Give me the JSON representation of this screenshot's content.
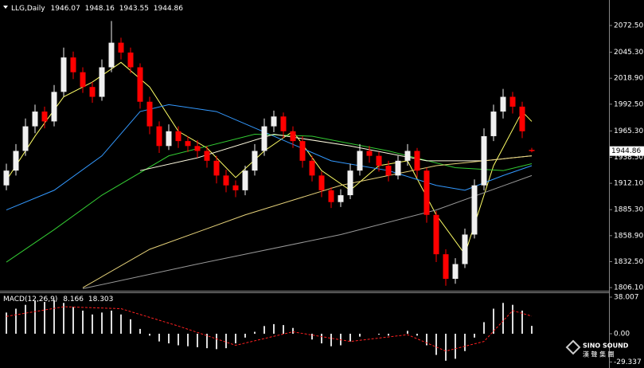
{
  "chart_data": {
    "type": "candlestick",
    "symbol": "LLG,Daily",
    "bull_color": "#f0f0f0",
    "bear_color": "#ff0000",
    "candles": [
      [
        1910,
        1932,
        1905,
        1925
      ],
      [
        1925,
        1952,
        1920,
        1945
      ],
      [
        1945,
        1978,
        1940,
        1970
      ],
      [
        1970,
        1992,
        1963,
        1985
      ],
      [
        1985,
        1990,
        1968,
        1975
      ],
      [
        1975,
        2012,
        1970,
        2005
      ],
      [
        2005,
        2050,
        2000,
        2040
      ],
      [
        2040,
        2046,
        2018,
        2025
      ],
      [
        2025,
        2030,
        2004,
        2010
      ],
      [
        2010,
        2015,
        1994,
        2000
      ],
      [
        2000,
        2038,
        1996,
        2030
      ],
      [
        2030,
        2077,
        2025,
        2055
      ],
      [
        2055,
        2060,
        2038,
        2045
      ],
      [
        2045,
        2050,
        2024,
        2030
      ],
      [
        2030,
        2034,
        1988,
        1995
      ],
      [
        1995,
        2000,
        1962,
        1970
      ],
      [
        1970,
        1975,
        1943,
        1950
      ],
      [
        1950,
        1972,
        1946,
        1965
      ],
      [
        1965,
        1970,
        1948,
        1955
      ],
      [
        1955,
        1960,
        1944,
        1950
      ],
      [
        1950,
        1956,
        1938,
        1945
      ],
      [
        1945,
        1950,
        1928,
        1935
      ],
      [
        1935,
        1940,
        1912,
        1920
      ],
      [
        1920,
        1926,
        1903,
        1910
      ],
      [
        1910,
        1915,
        1898,
        1905
      ],
      [
        1905,
        1930,
        1900,
        1925
      ],
      [
        1925,
        1952,
        1920,
        1945
      ],
      [
        1945,
        1978,
        1940,
        1970
      ],
      [
        1970,
        1986,
        1964,
        1980
      ],
      [
        1980,
        1984,
        1958,
        1965
      ],
      [
        1965,
        1970,
        1948,
        1955
      ],
      [
        1955,
        1960,
        1928,
        1935
      ],
      [
        1935,
        1940,
        1914,
        1920
      ],
      [
        1920,
        1924,
        1898,
        1905
      ],
      [
        1905,
        1908,
        1887,
        1893
      ],
      [
        1893,
        1906,
        1888,
        1900
      ],
      [
        1900,
        1932,
        1896,
        1925
      ],
      [
        1925,
        1952,
        1920,
        1945
      ],
      [
        1945,
        1950,
        1933,
        1940
      ],
      [
        1940,
        1944,
        1924,
        1930
      ],
      [
        1930,
        1935,
        1914,
        1920
      ],
      [
        1920,
        1940,
        1916,
        1935
      ],
      [
        1935,
        1952,
        1930,
        1945
      ],
      [
        1945,
        1948,
        1918,
        1925
      ],
      [
        1925,
        1928,
        1872,
        1880
      ],
      [
        1880,
        1884,
        1832,
        1840
      ],
      [
        1840,
        1845,
        1808,
        1815
      ],
      [
        1815,
        1836,
        1810,
        1830
      ],
      [
        1830,
        1866,
        1826,
        1860
      ],
      [
        1860,
        1916,
        1856,
        1910
      ],
      [
        1910,
        1968,
        1905,
        1960
      ],
      [
        1960,
        1992,
        1955,
        1985
      ],
      [
        1985,
        2008,
        1978,
        2000
      ],
      [
        2000,
        2005,
        1983,
        1990
      ],
      [
        1990,
        1995,
        1958,
        1965
      ],
      [
        1946.07,
        1948.16,
        1943.55,
        1944.86
      ]
    ],
    "moving_averages": [
      {
        "color": "#ffff66",
        "x": [
          0,
          3,
          6,
          9,
          12,
          15,
          18,
          21,
          24,
          27,
          30,
          33,
          36,
          39,
          42,
          45,
          48,
          51,
          54,
          55
        ],
        "values": [
          1915,
          1960,
          2000,
          2015,
          2035,
          2010,
          1965,
          1948,
          1918,
          1945,
          1965,
          1925,
          1905,
          1930,
          1935,
          1880,
          1840,
          1930,
          1985,
          1975
        ]
      },
      {
        "color": "#3399ff",
        "x": [
          0,
          5,
          10,
          14,
          17,
          22,
          28,
          34,
          40,
          45,
          48,
          52,
          55
        ],
        "values": [
          1885,
          1905,
          1940,
          1985,
          1992,
          1985,
          1960,
          1935,
          1925,
          1910,
          1905,
          1920,
          1930
        ]
      },
      {
        "color": "#33cc33",
        "x": [
          0,
          5,
          10,
          17,
          26,
          32,
          40,
          47,
          52,
          55
        ],
        "values": [
          1832,
          1865,
          1900,
          1940,
          1962,
          1960,
          1945,
          1928,
          1925,
          1932
        ]
      },
      {
        "color": "#fffbe0",
        "x": [
          14,
          20,
          28,
          36,
          44,
          50,
          55
        ],
        "values": [
          1925,
          1938,
          1962,
          1950,
          1935,
          1935,
          1940
        ]
      },
      {
        "color": "#999999",
        "x": [
          8,
          20,
          35,
          45,
          55
        ],
        "values": [
          1805,
          1830,
          1860,
          1885,
          1920
        ]
      },
      {
        "color": "#e6d27a",
        "x": [
          8,
          15,
          25,
          35,
          45,
          55
        ],
        "values": [
          1806,
          1845,
          1880,
          1910,
          1930,
          1940
        ]
      }
    ],
    "ylim": [
      1802.9,
      2098.4
    ],
    "yticks": [
      {
        "value": 1806.1,
        "label": "1806.10"
      },
      {
        "value": 1832.5,
        "label": "1832.50"
      },
      {
        "value": 1858.9,
        "label": "1858.90"
      },
      {
        "value": 1885.3,
        "label": "1885.30"
      },
      {
        "value": 1912.1,
        "label": "1912.10"
      },
      {
        "value": 1938.5,
        "label": "1938.50"
      },
      {
        "value": 1965.3,
        "label": "1965.30"
      },
      {
        "value": 1992.5,
        "label": "1992.50"
      },
      {
        "value": 2018.9,
        "label": "2018.90"
      },
      {
        "value": 2045.3,
        "label": "2045.30"
      },
      {
        "value": 2072.5,
        "label": "2072.50"
      }
    ],
    "macd": {
      "label": "MACD(12,26,9)",
      "color": "#dddddd",
      "signal_color": "#ff2020",
      "histogram": [
        22,
        26,
        30,
        34,
        33,
        35,
        32,
        28,
        24,
        20,
        22,
        24,
        20,
        15,
        5,
        -2,
        -8,
        -10,
        -12,
        -13,
        -14,
        -15,
        -16,
        -15,
        -10,
        -4,
        2,
        8,
        10,
        9,
        6,
        0,
        -6,
        -10,
        -13,
        -12,
        -8,
        -3,
        0,
        -1,
        -2,
        0,
        3,
        -2,
        -12,
        -22,
        -28,
        -26,
        -18,
        -4,
        12,
        26,
        32,
        30,
        24,
        8.166
      ],
      "signal": {
        "x": [
          0,
          6,
          12,
          18,
          24,
          30,
          36,
          42,
          46,
          50,
          53,
          55
        ],
        "values": [
          18,
          28,
          26,
          8,
          -12,
          2,
          -8,
          -1,
          -18,
          -8,
          24,
          18.303
        ]
      },
      "ylim": [
        -33.9,
        42.96
      ],
      "yticks": [
        {
          "value": 38.007,
          "label": "38.007"
        },
        {
          "value": 0,
          "label": "0.00"
        },
        {
          "value": -29.337,
          "label": "-29.337"
        }
      ]
    }
  },
  "logo": {
    "name": "SINO SOUND",
    "chinese": "漢 聲 集 團"
  }
}
